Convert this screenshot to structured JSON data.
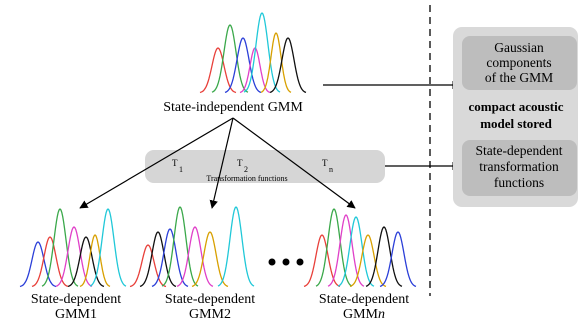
{
  "diagram": {
    "independent_label": "State-independent  GMM",
    "transform_label": "Transformation functions",
    "t_labels": [
      {
        "base": "T",
        "sub": "1"
      },
      {
        "base": "T",
        "sub": "2"
      },
      {
        "base": "T",
        "sub": "n"
      }
    ],
    "dependent": [
      {
        "line1": "State-dependent",
        "line2": "GMM1",
        "suffix": ""
      },
      {
        "line1": "State-dependent",
        "line2": "GMM2",
        "suffix": ""
      },
      {
        "line1": "State-dependent",
        "line2": "GMM",
        "suffix": "n"
      }
    ],
    "right_panel": {
      "box1": [
        "Gaussian",
        "components",
        "of the GMM"
      ],
      "bold": [
        "compact acoustic",
        "model stored"
      ],
      "box2": [
        "State-dependent",
        "transformation",
        "functions"
      ]
    },
    "colors": {
      "gaussians": [
        "#e8403a",
        "#3aa84a",
        "#2b3fd8",
        "#e040c8",
        "#d8a000",
        "#101010",
        "#20c8d8"
      ],
      "panel_outer": "#d9d9d9",
      "panel_inner": "#bdbdbd",
      "transform_band": "#d6d6d6"
    }
  }
}
